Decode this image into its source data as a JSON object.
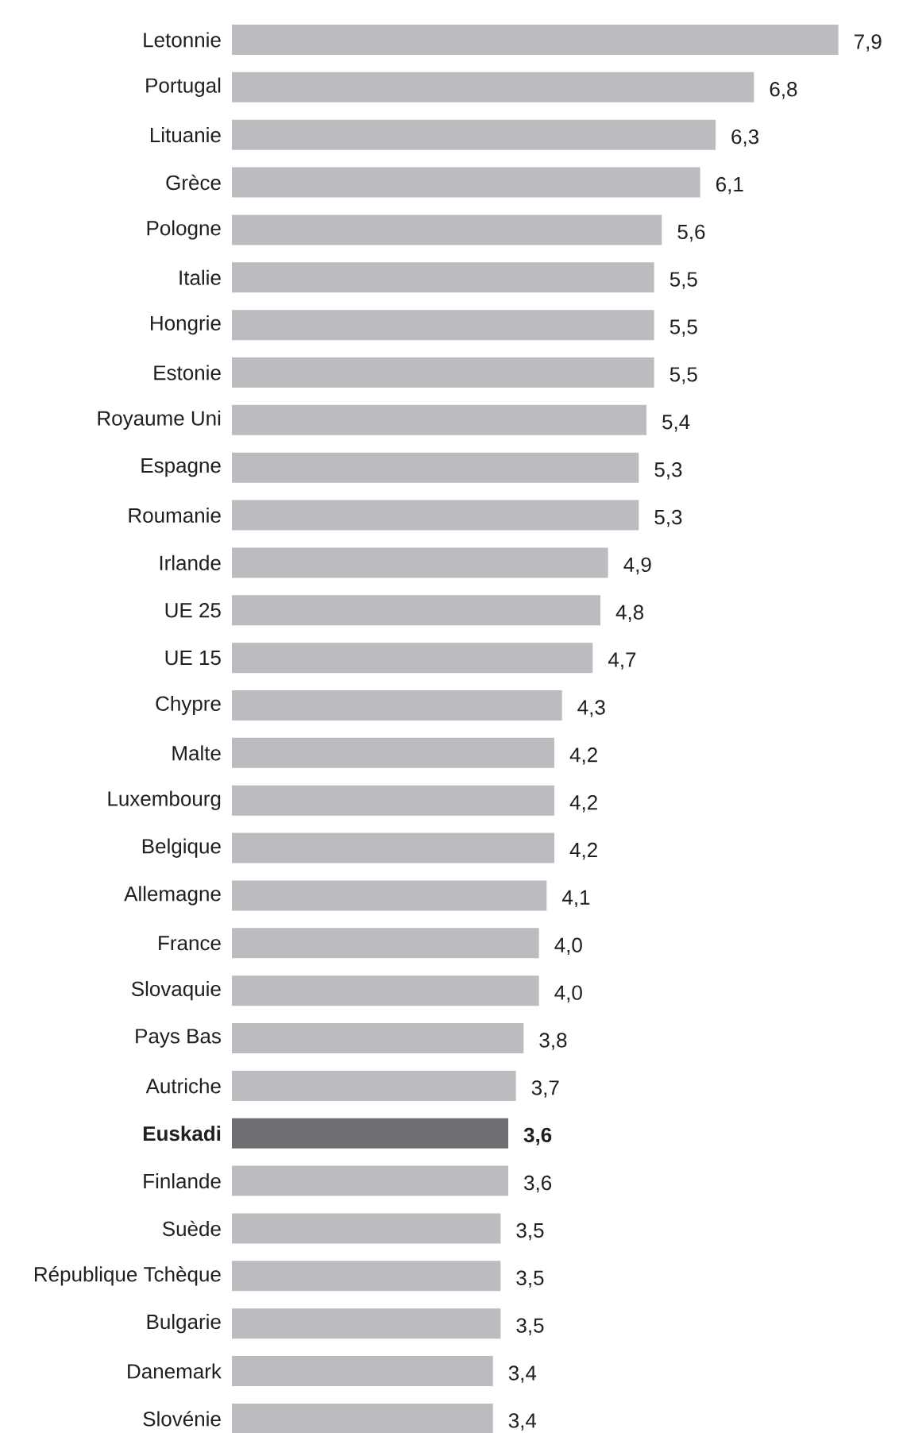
{
  "chart_data": {
    "type": "bar",
    "orientation": "horizontal",
    "categories": [
      "Letonnie",
      "Portugal",
      "Lituanie",
      "Grèce",
      "Pologne",
      "Italie",
      "Hongrie",
      "Estonie",
      "Royaume Uni",
      "Espagne",
      "Roumanie",
      "Irlande",
      "UE 25",
      "UE 15",
      "Chypre",
      "Malte",
      "Luxembourg",
      "Belgique",
      "Allemagne",
      "France",
      "Slovaquie",
      "Pays Bas",
      "Autriche",
      "Euskadi",
      "Finlande",
      "Suède",
      "République Tchèque",
      "Bulgarie",
      "Danemark",
      "Slovénie"
    ],
    "values": [
      7.9,
      6.8,
      6.3,
      6.1,
      5.6,
      5.5,
      5.5,
      5.5,
      5.4,
      5.3,
      5.3,
      4.9,
      4.8,
      4.7,
      4.3,
      4.2,
      4.2,
      4.2,
      4.1,
      4.0,
      4.0,
      3.8,
      3.7,
      3.6,
      3.6,
      3.5,
      3.5,
      3.5,
      3.4,
      3.4
    ],
    "value_labels": [
      "7,9",
      "6,8",
      "6,3",
      "6,1",
      "5,6",
      "5,5",
      "5,5",
      "5,5",
      "5,4",
      "5,3",
      "5,3",
      "4,9",
      "4,8",
      "4,7",
      "4,3",
      "4,2",
      "4,2",
      "4,2",
      "4,1",
      "4,0",
      "4,0",
      "3,8",
      "3,7",
      "3,6",
      "3,6",
      "3,5",
      "3,5",
      "3,5",
      "3,4",
      "3,4"
    ],
    "colors": [
      "#bbbcbf",
      "#bbbcbf",
      "#bbbcbf",
      "#bbbcbf",
      "#bbbcbf",
      "#bbbcbf",
      "#bbbcbf",
      "#bbbcbf",
      "#bbbcbf",
      "#bbbcbf",
      "#bbbcbf",
      "#bbbcbf",
      "#bbbcbf",
      "#bbbcbf",
      "#bbbcbf",
      "#bbbcbf",
      "#bbbcbf",
      "#bbbcbf",
      "#bbbcbf",
      "#bbbcbf",
      "#bbbcbf",
      "#bbbcbf",
      "#bbbcbf",
      "#6d6e71",
      "#bbbcbf",
      "#bbbcbf",
      "#bbbcbf",
      "#bbbcbf",
      "#bbbcbf",
      "#bbbcbf"
    ]
  }
}
